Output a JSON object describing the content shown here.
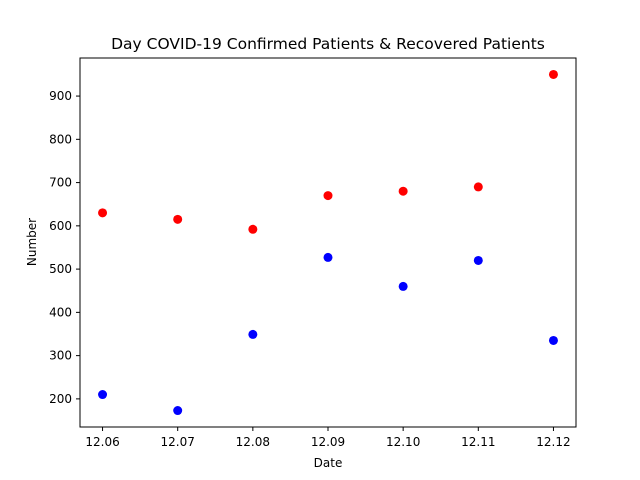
{
  "chart_data": {
    "type": "scatter",
    "title": "Day COVID-19 Confirmed Patients & Recovered Patients",
    "xlabel": "Date",
    "ylabel": "Number",
    "x": [
      "12.06",
      "12.07",
      "12.08",
      "12.09",
      "12.10",
      "12.11",
      "12.12"
    ],
    "xlim": [
      -0.3,
      6.3
    ],
    "ylim": [
      135,
      988
    ],
    "yticks": [
      200,
      300,
      400,
      500,
      600,
      700,
      800,
      900
    ],
    "grid": false,
    "series": [
      {
        "color": "#ff0000",
        "values": [
          630,
          615,
          592,
          670,
          680,
          690,
          950
        ]
      },
      {
        "color": "#0000ff",
        "values": [
          210,
          173,
          349,
          527,
          460,
          520,
          335
        ]
      }
    ]
  }
}
